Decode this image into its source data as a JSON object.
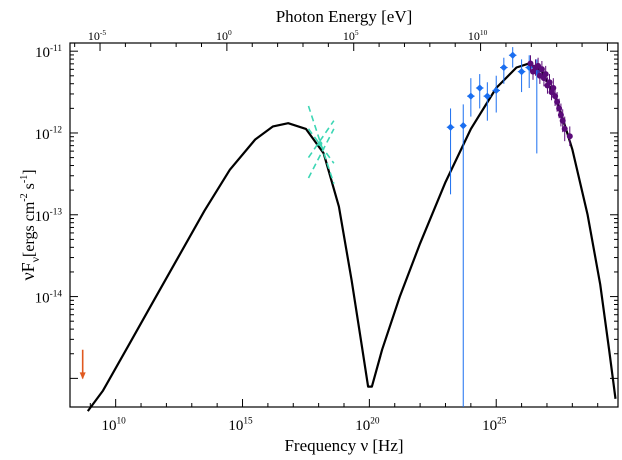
{
  "chart_data": {
    "type": "scatter",
    "title": "",
    "xlabel": "Frequency ν [Hz]",
    "ylabel_main": "νF",
    "ylabel_sub": "ν",
    "ylabel_units": "[ergs cm",
    "ylabel_exp1": "-2",
    "ylabel_mid": " s",
    "ylabel_exp2": "-1",
    "ylabel_end": "]",
    "top_xlabel": "Photon Energy [eV]",
    "x_scale": "log",
    "y_scale": "log",
    "xlim_log10": [
      8.2,
      29.8
    ],
    "ylim_log10": [
      -15.35,
      -10.9
    ],
    "bottom_ticks": [
      {
        "base": "10",
        "exp": "10",
        "value_log10": 10
      },
      {
        "base": "10",
        "exp": "15",
        "value_log10": 15
      },
      {
        "base": "10",
        "exp": "20",
        "value_log10": 20
      },
      {
        "base": "10",
        "exp": "25",
        "value_log10": 25
      }
    ],
    "top_ticks": [
      {
        "base": "10",
        "exp": "-5",
        "value_log10": -5
      },
      {
        "base": "10",
        "exp": "0",
        "value_log10": 0
      },
      {
        "base": "10",
        "exp": "5",
        "value_log10": 5
      },
      {
        "base": "10",
        "exp": "10",
        "value_log10": 10
      }
    ],
    "left_ticks": [
      {
        "base": "10",
        "exp": "-11",
        "value_log10": -11
      },
      {
        "base": "10",
        "exp": "-12",
        "value_log10": -12
      },
      {
        "base": "10",
        "exp": "-13",
        "value_log10": -13
      },
      {
        "base": "10",
        "exp": "-14",
        "value_log10": -14
      }
    ],
    "grid": false,
    "series": [
      {
        "kind": "model-curve",
        "color": "#000000",
        "points_log10": [
          [
            8.9,
            -15.4
          ],
          [
            9.5,
            -15.15
          ],
          [
            10.5,
            -14.6
          ],
          [
            11.5,
            -14.05
          ],
          [
            12.5,
            -13.5
          ],
          [
            13.5,
            -12.95
          ],
          [
            14.5,
            -12.45
          ],
          [
            15.5,
            -12.08
          ],
          [
            16.2,
            -11.92
          ],
          [
            16.8,
            -11.88
          ],
          [
            17.5,
            -11.95
          ],
          [
            18.2,
            -12.25
          ],
          [
            18.8,
            -12.9
          ],
          [
            19.3,
            -13.8
          ],
          [
            19.7,
            -14.6
          ],
          [
            19.95,
            -15.1
          ],
          [
            20.1,
            -15.1
          ],
          [
            20.5,
            -14.65
          ],
          [
            21.2,
            -14.0
          ],
          [
            22.0,
            -13.35
          ],
          [
            23.0,
            -12.6
          ],
          [
            24.0,
            -11.95
          ],
          [
            25.0,
            -11.45
          ],
          [
            25.8,
            -11.2
          ],
          [
            26.3,
            -11.15
          ],
          [
            26.8,
            -11.25
          ],
          [
            27.4,
            -11.6
          ],
          [
            28.0,
            -12.2
          ],
          [
            28.6,
            -13.0
          ],
          [
            29.1,
            -13.85
          ],
          [
            29.45,
            -14.65
          ],
          [
            29.7,
            -15.25
          ]
        ]
      },
      {
        "kind": "x-ray-bowtie",
        "color": "#3cd6b4",
        "center_log10": [
          18.05,
          -12.13
        ],
        "bowtie_lines_log10": [
          [
            [
              17.6,
              -11.67
            ],
            [
              18.6,
              -12.62
            ]
          ],
          [
            [
              17.6,
              -11.95
            ],
            [
              18.6,
              -12.37
            ]
          ],
          [
            [
              17.6,
              -12.55
            ],
            [
              18.6,
              -11.95
            ]
          ],
          [
            [
              17.6,
              -12.3
            ],
            [
              18.6,
              -11.85
            ]
          ]
        ]
      },
      {
        "kind": "fermi-points",
        "color": "#1a6ef0",
        "points_log10": [
          {
            "x": 23.2,
            "y": -11.93,
            "ylo": -12.75,
            "yhi": -11.7,
            "xerr": 0.15
          },
          {
            "x": 23.7,
            "y": -11.91,
            "ylo": -15.35,
            "yhi": -11.65,
            "xerr": 0
          },
          {
            "x": 24.0,
            "y": -11.55,
            "ylo": -11.8,
            "yhi": -11.33,
            "xerr": 0.15
          },
          {
            "x": 24.35,
            "y": -11.45,
            "ylo": -11.7,
            "yhi": -11.28,
            "xerr": 0.15
          },
          {
            "x": 24.65,
            "y": -11.55,
            "ylo": -11.85,
            "yhi": -11.38,
            "xerr": 0.15
          },
          {
            "x": 25.0,
            "y": -11.48,
            "ylo": -11.75,
            "yhi": -11.3,
            "xerr": 0.15
          },
          {
            "x": 25.3,
            "y": -11.2,
            "ylo": -11.4,
            "yhi": -11.08,
            "xerr": 0.15
          },
          {
            "x": 25.65,
            "y": -11.05,
            "ylo": -11.2,
            "yhi": -10.95,
            "xerr": 0.15
          },
          {
            "x": 26.0,
            "y": -11.25,
            "ylo": -11.5,
            "yhi": -11.1,
            "xerr": 0.15
          },
          {
            "x": 26.3,
            "y": -11.2,
            "ylo": -11.45,
            "yhi": -11.05,
            "xerr": 0.15
          },
          {
            "x": 26.6,
            "y": -11.25,
            "ylo": -12.25,
            "yhi": -11.1,
            "xerr": 0.15
          }
        ]
      },
      {
        "kind": "magic-points",
        "color": "#5a0a78",
        "points_log10": [
          {
            "x": 26.35,
            "y": -11.15,
            "err": 0.1
          },
          {
            "x": 26.45,
            "y": -11.25,
            "err": 0.1
          },
          {
            "x": 26.55,
            "y": -11.2,
            "err": 0.1
          },
          {
            "x": 26.65,
            "y": -11.18,
            "err": 0.1
          },
          {
            "x": 26.72,
            "y": -11.3,
            "err": 0.1
          },
          {
            "x": 26.8,
            "y": -11.22,
            "err": 0.1
          },
          {
            "x": 26.88,
            "y": -11.33,
            "err": 0.1
          },
          {
            "x": 26.95,
            "y": -11.28,
            "err": 0.1
          },
          {
            "x": 27.02,
            "y": -11.42,
            "err": 0.1
          },
          {
            "x": 27.1,
            "y": -11.38,
            "err": 0.1
          },
          {
            "x": 27.18,
            "y": -11.5,
            "err": 0.1
          },
          {
            "x": 27.25,
            "y": -11.45,
            "err": 0.12
          },
          {
            "x": 27.32,
            "y": -11.55,
            "err": 0.12
          },
          {
            "x": 27.4,
            "y": -11.62,
            "err": 0.12
          },
          {
            "x": 27.48,
            "y": -11.7,
            "err": 0.12
          },
          {
            "x": 27.55,
            "y": -11.78,
            "err": 0.14
          },
          {
            "x": 27.62,
            "y": -11.85,
            "err": 0.14
          },
          {
            "x": 27.7,
            "y": -11.95,
            "err": 0.15
          },
          {
            "x": 27.9,
            "y": -12.04,
            "err": 0.12
          }
        ]
      },
      {
        "kind": "upper-limit",
        "color": "#e0591f",
        "points_log10": [
          {
            "x": 8.7,
            "ytop": -14.65,
            "ybottom": -15.0
          }
        ]
      }
    ]
  }
}
